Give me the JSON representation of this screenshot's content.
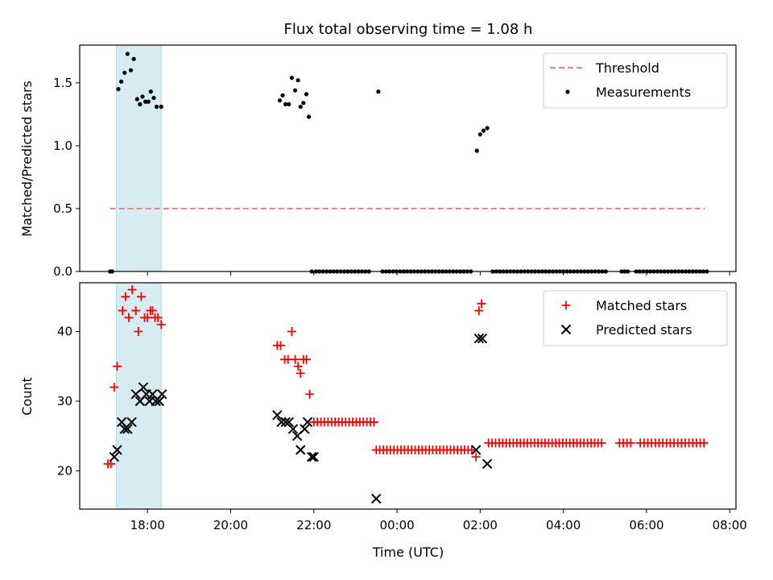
{
  "figure": {
    "title": "Flux total observing time = 1.08 h",
    "x_label": "Time (UTC)"
  },
  "chart_data": [
    {
      "type": "scatter",
      "panel": "top",
      "ylabel": "Matched/Predicted stars",
      "x_unit": "hours UTC (24-32 = next day)",
      "xlim": [
        16.37,
        32.15
      ],
      "ylim": [
        0,
        1.8
      ],
      "yticks": [
        0.0,
        0.5,
        1.0,
        1.5
      ],
      "ytick_labels": [
        "0.0",
        "0.5",
        "1.0",
        "1.5"
      ],
      "highlight_band": {
        "x": [
          17.25,
          18.33
        ],
        "color": "#add8e6"
      },
      "legend": {
        "position": "upper right",
        "entries": [
          "Threshold",
          "Measurements"
        ]
      },
      "threshold": {
        "name": "Threshold",
        "y": 0.5,
        "x": [
          17.1,
          31.4
        ],
        "color": "#ff7f7f",
        "style": "dashed"
      },
      "series": [
        {
          "name": "Measurements",
          "color": "#000000",
          "x": [
            17.1,
            17.15,
            17.3,
            17.37,
            17.45,
            17.52,
            17.6,
            17.67,
            17.75,
            17.82,
            17.88,
            17.95,
            18.02,
            18.08,
            18.15,
            18.22,
            18.33,
            21.18,
            21.25,
            21.32,
            21.4,
            21.47,
            21.55,
            21.62,
            21.68,
            21.75,
            21.82,
            21.88,
            21.95,
            23.55,
            25.92,
            26.0,
            26.08,
            26.17
          ],
          "y": [
            0.0,
            0.0,
            1.45,
            1.51,
            1.58,
            1.73,
            1.6,
            1.69,
            1.37,
            1.33,
            1.39,
            1.35,
            1.35,
            1.43,
            1.38,
            1.31,
            1.31,
            1.36,
            1.4,
            1.33,
            1.33,
            1.54,
            1.44,
            1.52,
            1.31,
            1.34,
            1.41,
            1.23,
            0.0,
            1.43,
            0.96,
            1.09,
            1.12,
            1.14
          ]
        }
      ],
      "zero_runs": [
        {
          "from": 22.05,
          "to": 23.4,
          "step": 0.085
        },
        {
          "from": 23.65,
          "to": 25.85,
          "step": 0.085
        },
        {
          "from": 26.3,
          "to": 29.1,
          "step": 0.085
        },
        {
          "from": 29.4,
          "to": 29.55,
          "step": 0.075
        },
        {
          "from": 29.75,
          "to": 31.45,
          "step": 0.085
        }
      ]
    },
    {
      "type": "scatter",
      "panel": "bottom",
      "ylabel": "Count",
      "x_unit": "hours UTC (24-32 = next day)",
      "xlim": [
        16.37,
        32.15
      ],
      "ylim": [
        14.5,
        47
      ],
      "yticks": [
        20,
        30,
        40
      ],
      "ytick_labels": [
        "20",
        "30",
        "40"
      ],
      "xticks": [
        18,
        20,
        22,
        24,
        26,
        28,
        30,
        32
      ],
      "xtick_labels": [
        "18:00",
        "20:00",
        "22:00",
        "00:00",
        "02:00",
        "04:00",
        "06:00",
        "08:00"
      ],
      "highlight_band": {
        "x": [
          17.25,
          18.33
        ],
        "color": "#add8e6"
      },
      "legend": {
        "position": "upper right",
        "entries": [
          "Matched stars",
          "Predicted stars"
        ]
      },
      "series": [
        {
          "name": "Matched stars",
          "marker": "plus",
          "color": "#ff0000",
          "x": [
            17.05,
            17.12,
            17.2,
            17.27,
            17.4,
            17.47,
            17.55,
            17.63,
            17.72,
            17.78,
            17.85,
            17.93,
            18.0,
            18.07,
            18.12,
            18.18,
            18.25,
            18.33,
            21.12,
            21.2,
            21.3,
            21.38,
            21.47,
            21.55,
            21.62,
            21.68,
            21.75,
            21.82,
            21.9,
            25.9,
            25.97,
            26.03
          ],
          "y": [
            21,
            21,
            32,
            35,
            43,
            45,
            42,
            46,
            43,
            40,
            45,
            42,
            42,
            43,
            43,
            42,
            42,
            41,
            38,
            38,
            36,
            36,
            40,
            36,
            35,
            34,
            36,
            36,
            31,
            22,
            43,
            44
          ]
        },
        {
          "name": "Predicted stars",
          "marker": "x",
          "color": "#000000",
          "x": [
            17.2,
            17.27,
            17.38,
            17.45,
            17.52,
            17.62,
            17.72,
            17.82,
            17.9,
            17.97,
            18.05,
            18.12,
            18.2,
            18.28,
            18.35,
            21.12,
            21.22,
            21.32,
            21.4,
            21.5,
            21.6,
            21.68,
            21.78,
            21.85,
            21.95,
            22.0,
            23.5,
            25.9,
            25.97,
            26.05,
            26.17
          ],
          "y": [
            22,
            23,
            27,
            26,
            26,
            27,
            31,
            30,
            32,
            31,
            30,
            31,
            30,
            30,
            31,
            28,
            27,
            27,
            27,
            26,
            25,
            23,
            26,
            27,
            22,
            22,
            16,
            23,
            39,
            39,
            21
          ]
        }
      ],
      "matched_runs": [
        {
          "from": 22.0,
          "to": 23.45,
          "step": 0.085,
          "y": 27
        },
        {
          "from": 23.5,
          "to": 25.85,
          "step": 0.085,
          "y": 23
        },
        {
          "from": 26.2,
          "to": 28.95,
          "step": 0.085,
          "y": 24
        },
        {
          "from": 29.35,
          "to": 29.7,
          "step": 0.09,
          "y": 24
        },
        {
          "from": 29.85,
          "to": 31.45,
          "step": 0.09,
          "y": 24
        }
      ]
    }
  ]
}
